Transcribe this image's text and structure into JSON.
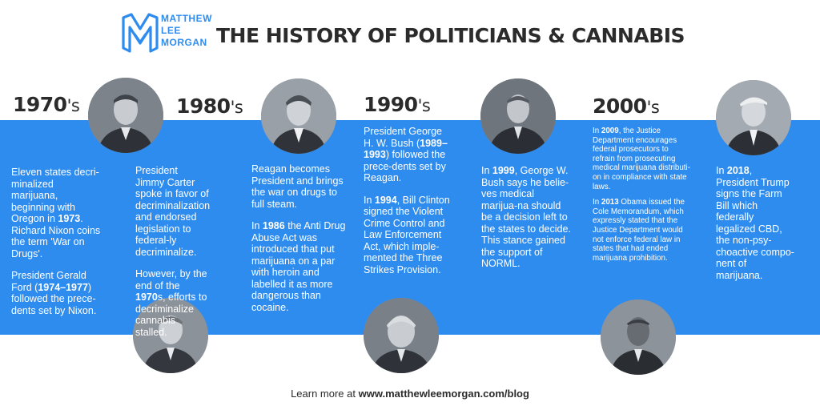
{
  "brand": {
    "line1": "MATTHEW",
    "line2": "LEE",
    "line3": "MORGAN",
    "color": "#2f8cef"
  },
  "title": "THE HISTORY OF POLITICIANS & CANNABIS",
  "band_color": "#2f8cef",
  "decades": [
    {
      "main": "1970",
      "suffix": "'s"
    },
    {
      "main": "1980",
      "suffix": "'s"
    },
    {
      "main": "1990",
      "suffix": "'s"
    },
    {
      "main": "2000",
      "suffix": "'s"
    }
  ],
  "columns": {
    "c1970": {
      "p1a": "Eleven states decri-minalized marijuana, beginning with Oregon in ",
      "p1b": "1973",
      "p1c": ". Richard Nixon coins the term 'War on Drugs'.",
      "p2a": "President Gerald Ford (",
      "p2b": "1974–1977",
      "p2c": ") followed the prece-dents set by Nixon."
    },
    "c1980": {
      "p1": "President Jimmy Carter spoke in favor of decriminalization and  endorsed legislation to federal-ly decriminalize.",
      "p2a": "However, by the end of the ",
      "p2b": "1970",
      "p2c": "s, efforts to decriminalize cannabis stalled."
    },
    "c1980b": {
      "p1": "Reagan becomes President and brings the war on drugs to full steam.",
      "p2a": "In ",
      "p2b": "1986",
      "p2c": " the Anti Drug Abuse Act was introduced that put marijuana on a par with heroin and labelled it as more dangerous than cocaine."
    },
    "c1990": {
      "p1a": "President George H. W. Bush (",
      "p1b": "1989–1993",
      "p1c": ") followed the prece-dents set by Reagan.",
      "p2a": "In ",
      "p2b": "1994",
      "p2c": ", Bill Clinton signed the Violent Crime Control and Law Enforcement Act,  which imple-mented the Three Strikes Provision."
    },
    "c1990b": {
      "p1a": "In ",
      "p1b": "1999",
      "p1c": ", George W. Bush says he belie-ves medical marijua-na should be a decision left to the states to decide. This stance gained the support of NORML."
    },
    "c2000": {
      "p1a": "In ",
      "p1b": "2009",
      "p1c": ", the Justice Department encourages federal prosecutors to refrain from prosecuting medical marijuana distributi-on in compliance with state laws.",
      "p2a": "In ",
      "p2b": "2013",
      "p2c": " Obama issued the Cole Memorandum, which expressly stated that the Justice Department would not enforce federal law in states that had ended marijuana prohibition."
    },
    "c2000b": {
      "p1a": "In ",
      "p1b": "2018",
      "p1c": ", President Trump signs the Farm Bill which federally legalized CBD, the non-psy-choactive compo-nent of marijuana."
    }
  },
  "footer": {
    "prefix": "Learn more at ",
    "url": "www.matthewleemorgan.com/blog"
  }
}
